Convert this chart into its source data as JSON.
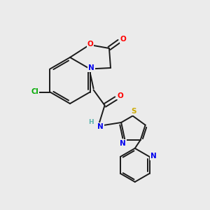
{
  "background_color": "#ebebeb",
  "bond_color": "#1a1a1a",
  "atom_colors": {
    "O": "#ff0000",
    "N": "#0000ee",
    "S": "#ccaa00",
    "Cl": "#00aa00",
    "C": "#1a1a1a",
    "H": "#5ab4ac"
  },
  "figsize": [
    3.0,
    3.0
  ],
  "dpi": 100
}
